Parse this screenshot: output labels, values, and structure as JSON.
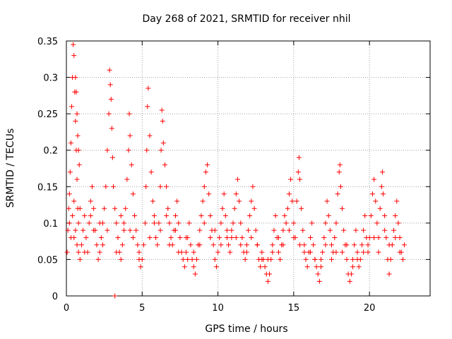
{
  "chart_data": {
    "type": "scatter",
    "title": "Day 268 of 2021, SRMTID for receiver nhil",
    "xlabel": "GPS time / hours",
    "ylabel": "SRMTID / TECUs",
    "xlim": [
      0,
      24
    ],
    "ylim": [
      0,
      0.35
    ],
    "xticks": [
      0,
      5,
      10,
      15,
      20
    ],
    "xtick_labels": [
      "0",
      "5",
      "10",
      "15",
      "20"
    ],
    "yticks": [
      0,
      0.05,
      0.1,
      0.15,
      0.2,
      0.25,
      0.3,
      0.35
    ],
    "ytick_labels": [
      "0",
      "0.05",
      "0.1",
      "0.15",
      "0.2",
      "0.25",
      "0.3",
      "0.35"
    ],
    "grid": true,
    "marker": "+",
    "color": "#ff0000",
    "series": [
      {
        "name": "SRMTID",
        "points": [
          [
            0.05,
            0.06
          ],
          [
            0.1,
            0.09
          ],
          [
            0.15,
            0.12
          ],
          [
            0.2,
            0.14
          ],
          [
            0.25,
            0.17
          ],
          [
            0.3,
            0.21
          ],
          [
            0.35,
            0.26
          ],
          [
            0.4,
            0.3
          ],
          [
            0.45,
            0.345
          ],
          [
            0.5,
            0.33
          ],
          [
            0.55,
            0.28
          ],
          [
            0.6,
            0.24
          ],
          [
            0.65,
            0.2
          ],
          [
            0.7,
            0.16
          ],
          [
            0.75,
            0.12
          ],
          [
            0.8,
            0.1
          ],
          [
            0.3,
            0.08
          ],
          [
            0.4,
            0.11
          ],
          [
            0.5,
            0.13
          ],
          [
            0.6,
            0.09
          ],
          [
            0.7,
            0.07
          ],
          [
            0.8,
            0.06
          ],
          [
            0.9,
            0.05
          ],
          [
            1.0,
            0.07
          ],
          [
            1.1,
            0.09
          ],
          [
            1.2,
            0.11
          ],
          [
            1.3,
            0.08
          ],
          [
            1.4,
            0.06
          ],
          [
            1.5,
            0.1
          ],
          [
            1.6,
            0.13
          ],
          [
            1.7,
            0.15
          ],
          [
            1.8,
            0.12
          ],
          [
            0.6,
            0.3
          ],
          [
            0.65,
            0.28
          ],
          [
            0.7,
            0.25
          ],
          [
            0.75,
            0.22
          ],
          [
            0.8,
            0.2
          ],
          [
            0.85,
            0.18
          ],
          [
            1.9,
            0.09
          ],
          [
            2.0,
            0.07
          ],
          [
            2.1,
            0.05
          ],
          [
            2.2,
            0.06
          ],
          [
            2.3,
            0.08
          ],
          [
            2.4,
            0.1
          ],
          [
            2.5,
            0.12
          ],
          [
            2.6,
            0.15
          ],
          [
            2.7,
            0.2
          ],
          [
            2.8,
            0.25
          ],
          [
            2.85,
            0.31
          ],
          [
            2.9,
            0.29
          ],
          [
            2.95,
            0.27
          ],
          [
            3.0,
            0.23
          ],
          [
            3.05,
            0.19
          ],
          [
            3.1,
            0.15
          ],
          [
            3.2,
            0.12
          ],
          [
            3.3,
            0.1
          ],
          [
            3.4,
            0.08
          ],
          [
            3.5,
            0.06
          ],
          [
            3.6,
            0.05
          ],
          [
            3.7,
            0.07
          ],
          [
            3.8,
            0.09
          ],
          [
            3.9,
            0.12
          ],
          [
            4.0,
            0.16
          ],
          [
            4.1,
            0.2
          ],
          [
            4.15,
            0.25
          ],
          [
            4.2,
            0.22
          ],
          [
            4.3,
            0.18
          ],
          [
            4.4,
            0.14
          ],
          [
            4.5,
            0.11
          ],
          [
            4.6,
            0.09
          ],
          [
            4.7,
            0.07
          ],
          [
            4.8,
            0.05
          ],
          [
            4.9,
            0.04
          ],
          [
            5.0,
            0.05
          ],
          [
            5.1,
            0.07
          ],
          [
            5.2,
            0.1
          ],
          [
            5.25,
            0.15
          ],
          [
            5.3,
            0.2
          ],
          [
            5.35,
            0.26
          ],
          [
            5.4,
            0.285
          ],
          [
            5.5,
            0.22
          ],
          [
            5.6,
            0.17
          ],
          [
            5.7,
            0.13
          ],
          [
            5.8,
            0.1
          ],
          [
            5.9,
            0.08
          ],
          [
            6.0,
            0.07
          ],
          [
            6.1,
            0.1
          ],
          [
            6.2,
            0.15
          ],
          [
            6.25,
            0.2
          ],
          [
            6.3,
            0.255
          ],
          [
            6.35,
            0.24
          ],
          [
            6.4,
            0.21
          ],
          [
            6.5,
            0.18
          ],
          [
            6.6,
            0.15
          ],
          [
            6.7,
            0.12
          ],
          [
            6.8,
            0.1
          ],
          [
            6.9,
            0.08
          ],
          [
            7.0,
            0.07
          ],
          [
            7.1,
            0.09
          ],
          [
            7.2,
            0.11
          ],
          [
            7.3,
            0.13
          ],
          [
            7.4,
            0.1
          ],
          [
            7.5,
            0.08
          ],
          [
            7.6,
            0.06
          ],
          [
            7.7,
            0.05
          ],
          [
            7.8,
            0.04
          ],
          [
            7.9,
            0.06
          ],
          [
            8.0,
            0.08
          ],
          [
            8.1,
            0.1
          ],
          [
            8.2,
            0.07
          ],
          [
            8.3,
            0.05
          ],
          [
            8.4,
            0.04
          ],
          [
            8.5,
            0.03
          ],
          [
            8.6,
            0.05
          ],
          [
            8.7,
            0.07
          ],
          [
            8.8,
            0.09
          ],
          [
            8.9,
            0.11
          ],
          [
            9.0,
            0.13
          ],
          [
            9.1,
            0.15
          ],
          [
            9.2,
            0.17
          ],
          [
            9.3,
            0.18
          ],
          [
            9.4,
            0.14
          ],
          [
            9.5,
            0.11
          ],
          [
            9.6,
            0.09
          ],
          [
            9.7,
            0.07
          ],
          [
            9.8,
            0.05
          ],
          [
            9.9,
            0.04
          ],
          [
            10.0,
            0.06
          ],
          [
            10.1,
            0.08
          ],
          [
            10.2,
            0.1
          ],
          [
            10.3,
            0.12
          ],
          [
            10.4,
            0.14
          ],
          [
            10.5,
            0.11
          ],
          [
            10.6,
            0.09
          ],
          [
            10.7,
            0.07
          ],
          [
            10.8,
            0.06
          ],
          [
            10.9,
            0.08
          ],
          [
            11.0,
            0.1
          ],
          [
            11.1,
            0.12
          ],
          [
            11.2,
            0.14
          ],
          [
            11.3,
            0.16
          ],
          [
            11.4,
            0.13
          ],
          [
            11.5,
            0.1
          ],
          [
            11.6,
            0.08
          ],
          [
            11.7,
            0.06
          ],
          [
            11.8,
            0.05
          ],
          [
            11.9,
            0.07
          ],
          [
            12.0,
            0.09
          ],
          [
            12.1,
            0.11
          ],
          [
            12.2,
            0.13
          ],
          [
            12.3,
            0.15
          ],
          [
            12.4,
            0.12
          ],
          [
            12.5,
            0.09
          ],
          [
            12.6,
            0.07
          ],
          [
            12.7,
            0.05
          ],
          [
            12.8,
            0.04
          ],
          [
            12.9,
            0.06
          ],
          [
            13.0,
            0.05
          ],
          [
            13.1,
            0.04
          ],
          [
            13.2,
            0.03
          ],
          [
            13.3,
            0.02
          ],
          [
            13.4,
            0.03
          ],
          [
            13.5,
            0.05
          ],
          [
            13.6,
            0.07
          ],
          [
            13.7,
            0.09
          ],
          [
            13.8,
            0.11
          ],
          [
            13.9,
            0.08
          ],
          [
            14.0,
            0.06
          ],
          [
            14.1,
            0.05
          ],
          [
            14.2,
            0.07
          ],
          [
            14.3,
            0.09
          ],
          [
            14.4,
            0.11
          ],
          [
            14.5,
            0.1
          ],
          [
            14.6,
            0.12
          ],
          [
            14.7,
            0.14
          ],
          [
            14.8,
            0.16
          ],
          [
            14.9,
            0.13
          ],
          [
            15.0,
            0.1
          ],
          [
            15.1,
            0.08
          ],
          [
            15.2,
            0.13
          ],
          [
            15.3,
            0.17
          ],
          [
            15.35,
            0.19
          ],
          [
            15.4,
            0.16
          ],
          [
            15.5,
            0.12
          ],
          [
            15.6,
            0.09
          ],
          [
            15.7,
            0.07
          ],
          [
            15.8,
            0.05
          ],
          [
            15.9,
            0.04
          ],
          [
            16.0,
            0.06
          ],
          [
            16.1,
            0.08
          ],
          [
            16.2,
            0.1
          ],
          [
            16.3,
            0.07
          ],
          [
            16.4,
            0.05
          ],
          [
            16.5,
            0.04
          ],
          [
            16.6,
            0.03
          ],
          [
            16.7,
            0.02
          ],
          [
            16.8,
            0.04
          ],
          [
            16.9,
            0.06
          ],
          [
            17.0,
            0.08
          ],
          [
            17.1,
            0.1
          ],
          [
            17.2,
            0.13
          ],
          [
            17.3,
            0.11
          ],
          [
            17.4,
            0.09
          ],
          [
            17.5,
            0.07
          ],
          [
            17.6,
            0.06
          ],
          [
            17.7,
            0.08
          ],
          [
            17.8,
            0.1
          ],
          [
            17.9,
            0.14
          ],
          [
            18.0,
            0.17
          ],
          [
            18.05,
            0.18
          ],
          [
            18.1,
            0.15
          ],
          [
            18.2,
            0.12
          ],
          [
            18.3,
            0.09
          ],
          [
            18.4,
            0.07
          ],
          [
            18.5,
            0.05
          ],
          [
            18.6,
            0.03
          ],
          [
            18.7,
            0.02
          ],
          [
            18.8,
            0.03
          ],
          [
            18.9,
            0.05
          ],
          [
            19.0,
            0.07
          ],
          [
            19.1,
            0.09
          ],
          [
            19.2,
            0.06
          ],
          [
            19.3,
            0.04
          ],
          [
            19.4,
            0.05
          ],
          [
            19.5,
            0.07
          ],
          [
            19.6,
            0.09
          ],
          [
            19.7,
            0.11
          ],
          [
            19.8,
            0.08
          ],
          [
            19.9,
            0.06
          ],
          [
            20.0,
            0.08
          ],
          [
            20.1,
            0.11
          ],
          [
            20.2,
            0.14
          ],
          [
            20.3,
            0.16
          ],
          [
            20.4,
            0.13
          ],
          [
            20.5,
            0.1
          ],
          [
            20.6,
            0.08
          ],
          [
            20.7,
            0.12
          ],
          [
            20.8,
            0.15
          ],
          [
            20.85,
            0.17
          ],
          [
            20.9,
            0.14
          ],
          [
            21.0,
            0.11
          ],
          [
            21.1,
            0.08
          ],
          [
            21.2,
            0.05
          ],
          [
            21.3,
            0.03
          ],
          [
            21.4,
            0.05
          ],
          [
            21.5,
            0.07
          ],
          [
            21.6,
            0.09
          ],
          [
            21.7,
            0.11
          ],
          [
            21.8,
            0.13
          ],
          [
            21.9,
            0.1
          ],
          [
            22.0,
            0.08
          ],
          [
            22.1,
            0.06
          ],
          [
            22.2,
            0.05
          ],
          [
            22.3,
            0.07
          ],
          [
            0.2,
            0.1
          ],
          [
            0.5,
            0.08
          ],
          [
            1.2,
            0.06
          ],
          [
            1.8,
            0.09
          ],
          [
            2.4,
            0.07
          ],
          [
            3.3,
            0.06
          ],
          [
            3.6,
            0.11
          ],
          [
            4.2,
            0.09
          ],
          [
            4.8,
            0.06
          ],
          [
            5.5,
            0.08
          ],
          [
            6.2,
            0.09
          ],
          [
            6.8,
            0.07
          ],
          [
            7.4,
            0.06
          ],
          [
            8.0,
            0.05
          ],
          [
            8.8,
            0.07
          ],
          [
            9.5,
            0.08
          ],
          [
            10.2,
            0.07
          ],
          [
            10.9,
            0.09
          ],
          [
            11.5,
            0.07
          ],
          [
            12.2,
            0.08
          ],
          [
            12.9,
            0.05
          ],
          [
            13.6,
            0.06
          ],
          [
            14.3,
            0.07
          ],
          [
            15.0,
            0.08
          ],
          [
            15.7,
            0.06
          ],
          [
            16.4,
            0.05
          ],
          [
            17.1,
            0.07
          ],
          [
            17.8,
            0.06
          ],
          [
            18.5,
            0.07
          ],
          [
            19.2,
            0.05
          ],
          [
            19.9,
            0.07
          ],
          [
            20.6,
            0.06
          ],
          [
            21.3,
            0.07
          ],
          [
            22.0,
            0.06
          ],
          [
            0.9,
            0.12
          ],
          [
            1.6,
            0.11
          ],
          [
            2.2,
            0.1
          ],
          [
            2.7,
            0.09
          ],
          [
            3.8,
            0.1
          ],
          [
            4.4,
            0.08
          ],
          [
            5.8,
            0.11
          ],
          [
            6.6,
            0.11
          ],
          [
            7.2,
            0.09
          ],
          [
            7.9,
            0.08
          ],
          [
            8.4,
            0.06
          ],
          [
            9.1,
            0.1
          ],
          [
            9.8,
            0.09
          ],
          [
            10.6,
            0.08
          ],
          [
            11.2,
            0.08
          ],
          [
            11.9,
            0.06
          ],
          [
            12.6,
            0.07
          ],
          [
            13.3,
            0.05
          ],
          [
            14.0,
            0.08
          ],
          [
            14.7,
            0.09
          ],
          [
            15.4,
            0.07
          ],
          [
            16.1,
            0.06
          ],
          [
            16.8,
            0.05
          ],
          [
            17.5,
            0.05
          ],
          [
            18.2,
            0.06
          ],
          [
            18.9,
            0.04
          ],
          [
            19.6,
            0.06
          ],
          [
            20.3,
            0.08
          ],
          [
            21.0,
            0.09
          ],
          [
            21.7,
            0.08
          ],
          [
            3.2,
            0.0
          ]
        ]
      }
    ]
  }
}
